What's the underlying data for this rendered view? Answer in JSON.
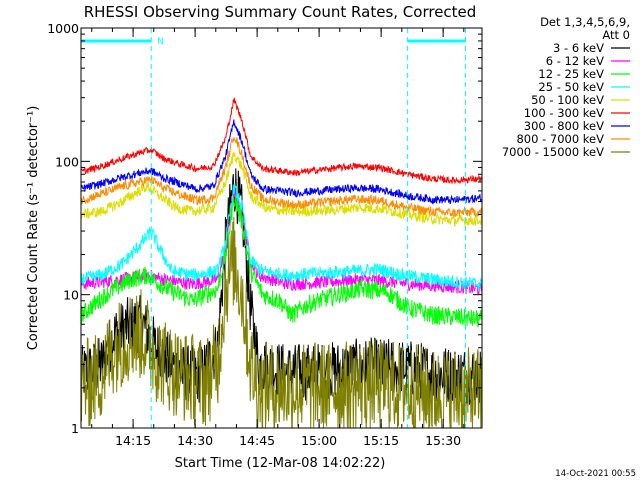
{
  "chart_data": {
    "type": "line",
    "title": "RHESSI Observing Summary Count Rates, Corrected",
    "xlabel": "Start Time (12-Mar-08 14:02:22)",
    "ylabel": "Corrected Count Rate (s⁻¹ detector⁻¹)",
    "footer": "14-Oct-2021 00:55",
    "yscale": "log",
    "xlim": [
      0,
      97
    ],
    "ylim": [
      1,
      1000
    ],
    "xticks": [
      {
        "x": 12.6,
        "label": "14:15"
      },
      {
        "x": 27.6,
        "label": "14:30"
      },
      {
        "x": 42.6,
        "label": "14:45"
      },
      {
        "x": 57.6,
        "label": "15:00"
      },
      {
        "x": 72.6,
        "label": "15:15"
      },
      {
        "x": 87.6,
        "label": "15:30"
      }
    ],
    "yticks": [
      {
        "y": 1,
        "label": "1"
      },
      {
        "y": 10,
        "label": "10"
      },
      {
        "y": 100,
        "label": "100"
      },
      {
        "y": 1000,
        "label": "1000"
      }
    ],
    "legend": {
      "position": "right",
      "header": [
        "Det 1,3,4,5,6,9,",
        "Att 0"
      ]
    },
    "markers": {
      "label": "N",
      "lines_x": [
        17,
        79,
        93
      ],
      "night_bars": [
        [
          0,
          17
        ],
        [
          79,
          93
        ]
      ]
    },
    "series": [
      {
        "name": "3 - 6 keV",
        "color": "#000000",
        "noise": 0.22,
        "points": [
          [
            0,
            2.5
          ],
          [
            5,
            3
          ],
          [
            8,
            5
          ],
          [
            12,
            6
          ],
          [
            15,
            6
          ],
          [
            18,
            4
          ],
          [
            24,
            2.6
          ],
          [
            29,
            2.5
          ],
          [
            33,
            4
          ],
          [
            35,
            25
          ],
          [
            37,
            70
          ],
          [
            39,
            40
          ],
          [
            41,
            8
          ],
          [
            43,
            3
          ],
          [
            50,
            2.6
          ],
          [
            60,
            2.7
          ],
          [
            70,
            2.9
          ],
          [
            79,
            2.8
          ],
          [
            85,
            2.6
          ],
          [
            90,
            2.5
          ],
          [
            97,
            2.5
          ]
        ]
      },
      {
        "name": "6 - 12 keV",
        "color": "#ff00ff",
        "noise": 0.05,
        "points": [
          [
            0,
            12
          ],
          [
            10,
            13
          ],
          [
            16,
            14
          ],
          [
            20,
            13
          ],
          [
            27,
            12
          ],
          [
            33,
            13
          ],
          [
            35,
            22
          ],
          [
            37,
            60
          ],
          [
            39,
            40
          ],
          [
            41,
            18
          ],
          [
            43,
            14
          ],
          [
            50,
            12
          ],
          [
            60,
            12.5
          ],
          [
            68,
            13
          ],
          [
            75,
            12.5
          ],
          [
            80,
            12
          ],
          [
            90,
            11.5
          ],
          [
            97,
            11
          ]
        ]
      },
      {
        "name": "12 - 25 keV",
        "color": "#00ff00",
        "noise": 0.07,
        "points": [
          [
            0,
            7
          ],
          [
            6,
            10
          ],
          [
            12,
            13
          ],
          [
            16,
            14
          ],
          [
            21,
            11
          ],
          [
            27,
            9
          ],
          [
            33,
            11
          ],
          [
            35,
            20
          ],
          [
            37,
            55
          ],
          [
            39,
            35
          ],
          [
            41,
            15
          ],
          [
            44,
            10
          ],
          [
            48,
            9
          ],
          [
            51,
            7
          ],
          [
            55,
            8.5
          ],
          [
            62,
            10
          ],
          [
            68,
            11
          ],
          [
            74,
            10.5
          ],
          [
            79,
            8
          ],
          [
            85,
            7
          ],
          [
            90,
            6.8
          ],
          [
            97,
            6.5
          ]
        ]
      },
      {
        "name": "25 - 50 keV",
        "color": "#00ffff",
        "noise": 0.05,
        "points": [
          [
            0,
            13
          ],
          [
            5,
            14
          ],
          [
            10,
            17
          ],
          [
            15,
            25
          ],
          [
            17,
            30
          ],
          [
            19,
            22
          ],
          [
            22,
            15
          ],
          [
            27,
            14
          ],
          [
            33,
            15
          ],
          [
            35,
            25
          ],
          [
            37,
            65
          ],
          [
            39,
            45
          ],
          [
            41,
            18
          ],
          [
            44,
            15
          ],
          [
            50,
            14
          ],
          [
            58,
            14.5
          ],
          [
            66,
            15
          ],
          [
            72,
            15.5
          ],
          [
            78,
            14
          ],
          [
            85,
            13
          ],
          [
            90,
            12.5
          ],
          [
            97,
            12
          ]
        ]
      },
      {
        "name": "50 - 100 keV",
        "color": "#dddd00",
        "noise": 0.04,
        "points": [
          [
            0,
            40
          ],
          [
            5,
            42
          ],
          [
            10,
            50
          ],
          [
            14,
            60
          ],
          [
            16,
            65
          ],
          [
            19,
            55
          ],
          [
            23,
            45
          ],
          [
            27,
            42
          ],
          [
            32,
            45
          ],
          [
            35,
            70
          ],
          [
            37,
            115
          ],
          [
            39,
            90
          ],
          [
            41,
            55
          ],
          [
            45,
            44
          ],
          [
            52,
            42
          ],
          [
            60,
            43
          ],
          [
            67,
            45
          ],
          [
            73,
            44
          ],
          [
            79,
            40
          ],
          [
            85,
            37
          ],
          [
            90,
            36
          ],
          [
            97,
            36
          ]
        ]
      },
      {
        "name": "100 - 300 keV",
        "color": "#ff0000",
        "noise": 0.025,
        "points": [
          [
            0,
            83
          ],
          [
            5,
            92
          ],
          [
            10,
            105
          ],
          [
            15,
            118
          ],
          [
            17,
            122
          ],
          [
            20,
            105
          ],
          [
            24,
            95
          ],
          [
            28,
            88
          ],
          [
            32,
            92
          ],
          [
            35,
            150
          ],
          [
            37,
            290
          ],
          [
            39,
            200
          ],
          [
            41,
            110
          ],
          [
            44,
            88
          ],
          [
            52,
            82
          ],
          [
            60,
            88
          ],
          [
            66,
            92
          ],
          [
            72,
            90
          ],
          [
            79,
            80
          ],
          [
            85,
            74
          ],
          [
            90,
            72
          ],
          [
            97,
            74
          ]
        ]
      },
      {
        "name": "300 - 800 keV",
        "color": "#0000ff",
        "noise": 0.03,
        "points": [
          [
            0,
            62
          ],
          [
            5,
            68
          ],
          [
            10,
            76
          ],
          [
            15,
            83
          ],
          [
            17,
            85
          ],
          [
            20,
            75
          ],
          [
            24,
            68
          ],
          [
            28,
            62
          ],
          [
            32,
            65
          ],
          [
            35,
            110
          ],
          [
            37,
            200
          ],
          [
            39,
            140
          ],
          [
            41,
            80
          ],
          [
            44,
            62
          ],
          [
            52,
            58
          ],
          [
            60,
            61
          ],
          [
            66,
            63
          ],
          [
            72,
            62
          ],
          [
            79,
            55
          ],
          [
            85,
            52
          ],
          [
            90,
            51
          ],
          [
            97,
            53
          ]
        ]
      },
      {
        "name": "800 - 7000 keV",
        "color": "#ff8c00",
        "noise": 0.035,
        "points": [
          [
            0,
            51
          ],
          [
            5,
            57
          ],
          [
            10,
            65
          ],
          [
            15,
            71
          ],
          [
            17,
            73
          ],
          [
            20,
            63
          ],
          [
            24,
            56
          ],
          [
            28,
            51
          ],
          [
            32,
            53
          ],
          [
            35,
            90
          ],
          [
            37,
            160
          ],
          [
            39,
            110
          ],
          [
            41,
            66
          ],
          [
            44,
            52
          ],
          [
            52,
            47
          ],
          [
            60,
            50
          ],
          [
            66,
            52
          ],
          [
            72,
            51
          ],
          [
            79,
            45
          ],
          [
            85,
            42
          ],
          [
            90,
            41
          ],
          [
            97,
            42
          ]
        ]
      },
      {
        "name": "7000 - 15000 keV",
        "color": "#808000",
        "noise": 0.35,
        "points": [
          [
            0,
            2
          ],
          [
            5,
            2.5
          ],
          [
            8,
            4
          ],
          [
            12,
            5
          ],
          [
            15,
            5
          ],
          [
            18,
            3.5
          ],
          [
            24,
            2.5
          ],
          [
            30,
            2.2
          ],
          [
            33,
            3
          ],
          [
            35,
            12
          ],
          [
            37,
            18
          ],
          [
            39,
            10
          ],
          [
            41,
            3
          ],
          [
            43,
            2
          ],
          [
            50,
            2
          ],
          [
            60,
            2
          ],
          [
            70,
            2.1
          ],
          [
            79,
            2
          ],
          [
            85,
            1.8
          ],
          [
            90,
            1.8
          ],
          [
            97,
            1.8
          ]
        ]
      }
    ]
  }
}
